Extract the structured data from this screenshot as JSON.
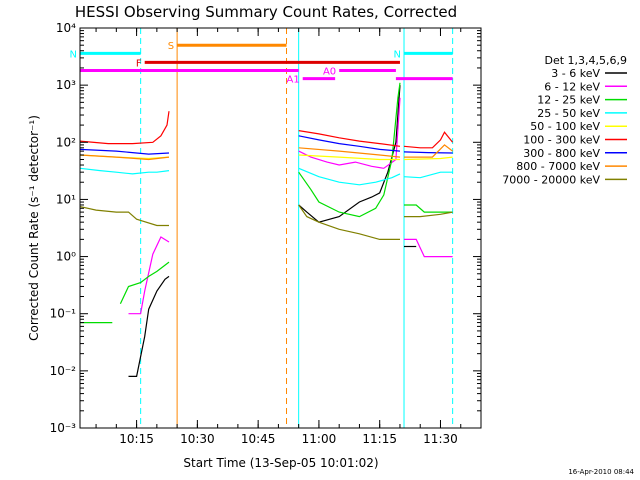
{
  "chart_data": {
    "type": "line",
    "title": "HESSI Observing Summary Count Rates, Corrected",
    "xlabel": "Start Time (13-Sep-05 10:01:02)",
    "ylabel": "Corrected Count Rate (s⁻¹ detector⁻¹)",
    "y_scale": "log",
    "ylim": [
      0.001,
      10000
    ],
    "xlim": [
      "10:01:02",
      "11:40:00"
    ],
    "x_ticks": [
      "10:15",
      "10:30",
      "10:45",
      "11:00",
      "11:15",
      "11:30"
    ],
    "y_ticks": [
      "10⁻³",
      "10⁻²",
      "10⁻¹",
      "10⁰",
      "10¹",
      "10²",
      "10³",
      "10⁴"
    ],
    "legend_title": "Det 1,3,4,5,6,9",
    "legend_position": "right",
    "timestamp": "16-Apr-2010 08:44",
    "series": [
      {
        "name": "3 - 6 keV",
        "color": "#000000",
        "segments": [
          {
            "x": [
              "10:13:00",
              "10:15:00",
              "10:17:00",
              "10:18:00",
              "10:20:00",
              "10:22:00",
              "10:23:00"
            ],
            "y": [
              0.008,
              0.008,
              0.04,
              0.12,
              0.25,
              0.4,
              0.45
            ]
          },
          {
            "x": [
              "10:55:00",
              "10:57:00",
              "11:00:00",
              "11:05:00",
              "11:10:00",
              "11:13:00",
              "11:15:00",
              "11:17:00",
              "11:19:00",
              "11:20:00"
            ],
            "y": [
              8,
              6,
              4,
              5,
              9,
              11,
              13,
              30,
              100,
              1000
            ]
          },
          {
            "x": [
              "11:21:00",
              "11:24:00"
            ],
            "y": [
              1.5,
              1.5
            ]
          }
        ]
      },
      {
        "name": "6 - 12 keV",
        "color": "#ff00ff",
        "segments": [
          {
            "x": [
              "10:13:00",
              "10:16:00",
              "10:17:00",
              "10:19:00",
              "10:21:00",
              "10:23:00"
            ],
            "y": [
              0.1,
              0.1,
              0.25,
              1.1,
              2.2,
              1.8
            ]
          },
          {
            "x": [
              "10:55:00",
              "10:58:00",
              "11:02:00",
              "11:05:00",
              "11:09:00",
              "11:13:00",
              "11:16:00",
              "11:19:00",
              "11:20:00"
            ],
            "y": [
              70,
              55,
              45,
              40,
              45,
              38,
              35,
              50,
              600
            ]
          },
          {
            "x": [
              "11:21:00",
              "11:24:00",
              "11:26:00",
              "11:33:00"
            ],
            "y": [
              2,
              2,
              1,
              1
            ]
          }
        ]
      },
      {
        "name": "12 - 25 keV",
        "color": "#00dd00",
        "segments": [
          {
            "x": [
              "10:01:02",
              "10:09:00"
            ],
            "y": [
              0.07,
              0.07
            ]
          },
          {
            "x": [
              "10:11:00",
              "10:13:00",
              "10:16:00",
              "10:18:00",
              "10:20:00",
              "10:23:00"
            ],
            "y": [
              0.15,
              0.3,
              0.35,
              0.45,
              0.55,
              0.8
            ]
          },
          {
            "x": [
              "10:55:00",
              "10:58:00",
              "11:00:00",
              "11:05:00",
              "11:10:00",
              "11:14:00",
              "11:16:00",
              "11:18:00",
              "11:19:30",
              "11:20:00"
            ],
            "y": [
              30,
              15,
              9,
              6,
              5,
              7,
              12,
              50,
              600,
              1100
            ]
          },
          {
            "x": [
              "11:21:00",
              "11:24:00",
              "11:26:00",
              "11:33:00"
            ],
            "y": [
              8,
              8,
              6,
              6
            ]
          }
        ]
      },
      {
        "name": "25 - 50 keV",
        "color": "#00ffff",
        "segments": [
          {
            "x": [
              "10:01:02",
              "10:06:00",
              "10:10:00",
              "10:14:00",
              "10:18:00",
              "10:20:00",
              "10:23:00"
            ],
            "y": [
              35,
              32,
              30,
              28,
              30,
              30,
              32
            ]
          },
          {
            "x": [
              "10:55:00",
              "11:00:00",
              "11:05:00",
              "11:10:00",
              "11:14:00",
              "11:18:00",
              "11:20:00"
            ],
            "y": [
              35,
              25,
              20,
              18,
              20,
              24,
              28
            ]
          },
          {
            "x": [
              "11:21:00",
              "11:25:00",
              "11:30:00",
              "11:33:00"
            ],
            "y": [
              25,
              24,
              30,
              30
            ]
          }
        ]
      },
      {
        "name": "50 - 100 keV",
        "color": "#ffff00",
        "segments": [
          {
            "x": [
              "10:01:02",
              "10:10:00",
              "10:18:00",
              "10:23:00"
            ],
            "y": [
              60,
              55,
              52,
              55
            ]
          },
          {
            "x": [
              "10:55:00",
              "11:05:00",
              "11:15:00",
              "11:20:00"
            ],
            "y": [
              60,
              55,
              50,
              50
            ]
          },
          {
            "x": [
              "11:21:00",
              "11:30:00",
              "11:33:00"
            ],
            "y": [
              50,
              52,
              55
            ]
          }
        ]
      },
      {
        "name": "100 - 300 keV",
        "color": "#ff0000",
        "segments": [
          {
            "x": [
              "10:01:02",
              "10:08:00",
              "10:14:00",
              "10:19:00",
              "10:21:00",
              "10:22:30",
              "10:23:00"
            ],
            "y": [
              105,
              95,
              95,
              100,
              130,
              200,
              350
            ]
          },
          {
            "x": [
              "10:55:00",
              "11:00:00",
              "11:05:00",
              "11:10:00",
              "11:15:00",
              "11:20:00"
            ],
            "y": [
              160,
              140,
              120,
              105,
              95,
              85
            ]
          },
          {
            "x": [
              "11:21:00",
              "11:25:00",
              "11:28:00",
              "11:30:00",
              "11:31:00",
              "11:33:00"
            ],
            "y": [
              85,
              80,
              80,
              110,
              150,
              100
            ]
          }
        ]
      },
      {
        "name": "300 - 800 keV",
        "color": "#0000ff",
        "segments": [
          {
            "x": [
              "10:01:02",
              "10:10:00",
              "10:18:00",
              "10:23:00"
            ],
            "y": [
              75,
              70,
              62,
              65
            ]
          },
          {
            "x": [
              "10:55:00",
              "11:00:00",
              "11:05:00",
              "11:10:00",
              "11:15:00",
              "11:20:00"
            ],
            "y": [
              130,
              110,
              95,
              85,
              75,
              70
            ]
          },
          {
            "x": [
              "11:21:00",
              "11:27:00",
              "11:33:00"
            ],
            "y": [
              68,
              66,
              65
            ]
          }
        ]
      },
      {
        "name": "800 - 7000 keV",
        "color": "#ff8800",
        "segments": [
          {
            "x": [
              "10:01:02",
              "10:10:00",
              "10:18:00",
              "10:23:00"
            ],
            "y": [
              60,
              55,
              50,
              55
            ]
          },
          {
            "x": [
              "10:55:00",
              "11:05:00",
              "11:15:00",
              "11:20:00"
            ],
            "y": [
              80,
              70,
              60,
              55
            ]
          },
          {
            "x": [
              "11:21:00",
              "11:28:00",
              "11:31:00",
              "11:33:00"
            ],
            "y": [
              55,
              55,
              90,
              70
            ]
          }
        ]
      },
      {
        "name": "7000 - 20000 keV",
        "color": "#808000",
        "segments": [
          {
            "x": [
              "10:01:02",
              "10:05:00",
              "10:10:00",
              "10:13:00",
              "10:15:00",
              "10:20:00",
              "10:23:00"
            ],
            "y": [
              7.5,
              6.5,
              6,
              6,
              4.5,
              3.5,
              3.5
            ]
          },
          {
            "x": [
              "10:55:00",
              "10:57:00",
              "11:00:00",
              "11:05:00",
              "11:10:00",
              "11:15:00",
              "11:17:00",
              "11:20:00"
            ],
            "y": [
              8,
              5,
              4,
              3,
              2.5,
              2,
              2,
              2
            ]
          },
          {
            "x": [
              "11:21:00",
              "11:25:00",
              "11:30:00",
              "11:33:00"
            ],
            "y": [
              5,
              5,
              5.5,
              6
            ]
          }
        ]
      }
    ],
    "flag_bars": [
      {
        "label": "S",
        "color": "#ff8800",
        "level": 5000,
        "x0": "10:25:00",
        "x1": "10:52:00"
      },
      {
        "label": "N",
        "color": "#00ffff",
        "level": 3600,
        "x0": "10:01:02",
        "x1": "10:16:00"
      },
      {
        "label": "N",
        "color": "#00ffff",
        "level": 3600,
        "x0": "11:21:00",
        "x1": "11:33:00"
      },
      {
        "label": "F",
        "color": "#dd0000",
        "level": 2500,
        "x0": "10:17:00",
        "x1": "11:20:00"
      },
      {
        "label": "",
        "color": "#ff00ff",
        "level": 1800,
        "x0": "10:01:02",
        "x1": "10:55:00"
      },
      {
        "label": "A0",
        "color": "#ff00ff",
        "level": 1800,
        "x0": "11:05:00",
        "x1": "11:19:00"
      },
      {
        "label": "A1",
        "color": "#ff00ff",
        "level": 1300,
        "x0": "10:56:00",
        "x1": "11:04:00"
      },
      {
        "label": "",
        "color": "#ff00ff",
        "level": 1300,
        "x0": "11:19:00",
        "x1": "11:33:00"
      }
    ],
    "vlines": [
      {
        "x": "10:01:02",
        "color": "#00ffff",
        "style": "solid"
      },
      {
        "x": "10:16:00",
        "color": "#00ffff",
        "style": "dashed"
      },
      {
        "x": "10:25:00",
        "color": "#ff8800",
        "style": "solid"
      },
      {
        "x": "10:52:00",
        "color": "#ff8800",
        "style": "dashed"
      },
      {
        "x": "10:55:00",
        "color": "#00ffff",
        "style": "solid"
      },
      {
        "x": "11:21:00",
        "color": "#00ffff",
        "style": "solid"
      },
      {
        "x": "11:33:00",
        "color": "#00ffff",
        "style": "dashed"
      }
    ]
  }
}
